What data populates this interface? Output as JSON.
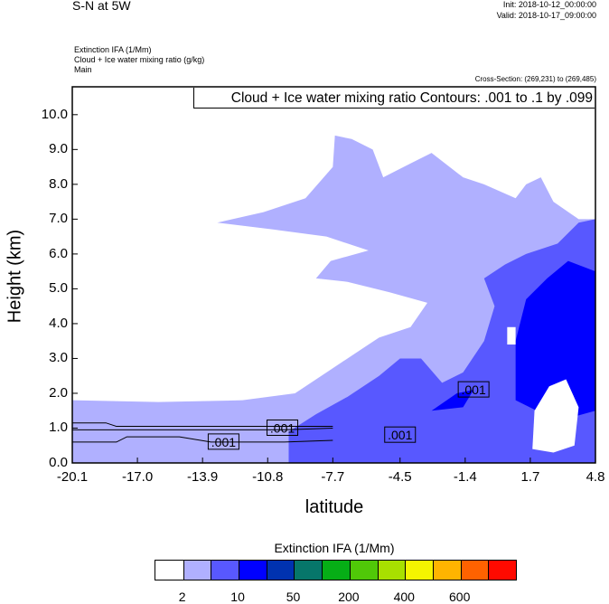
{
  "header": {
    "title": "S-N at 5W",
    "init": "Init: 2018-10-12_00:00:00",
    "valid": "Valid: 2018-10-17_09:00:00",
    "fields": [
      "Extinction IFA   (1/Mm)",
      "Cloud + Ice water mixing ratio   (g/kg)",
      "Main"
    ],
    "cross_section": "Cross-Section: (269,231) to (269,485)"
  },
  "chart_data": {
    "type": "contour-filled cross-section",
    "title": "Cloud + Ice water mixing ratio Contours: .001 to .1 by .099",
    "xlabel": "latitude",
    "ylabel": "Height (km)",
    "xlim": [
      -20.1,
      4.8
    ],
    "ylim": [
      0,
      10.8
    ],
    "xticks": [
      "-20.1",
      "-17.0",
      "-13.9",
      "-10.8",
      "-7.7",
      "-4.5",
      "-1.4",
      "1.7",
      "4.8"
    ],
    "yticks": [
      "0.0",
      "1.0",
      "2.0",
      "3.0",
      "4.0",
      "5.0",
      "6.0",
      "7.0",
      "8.0",
      "9.0",
      "10.0"
    ],
    "fill_regions": [
      {
        "level": "2-10",
        "color": "#b0b0ff",
        "points": [
          [
            -20.1,
            0
          ],
          [
            -20.1,
            1.8
          ],
          [
            -16,
            1.75
          ],
          [
            -12,
            1.8
          ],
          [
            -9.5,
            2.0
          ],
          [
            -8,
            2.6
          ],
          [
            -6.5,
            3.2
          ],
          [
            -5.5,
            3.6
          ],
          [
            -4,
            3.9
          ],
          [
            -3.2,
            4.6
          ],
          [
            -5,
            4.9
          ],
          [
            -7,
            5.2
          ],
          [
            -8.5,
            5.3
          ],
          [
            -7.8,
            5.8
          ],
          [
            -6,
            6.1
          ],
          [
            -8,
            6.5
          ],
          [
            -10.5,
            6.7
          ],
          [
            -13.2,
            6.9
          ],
          [
            -11,
            7.2
          ],
          [
            -9,
            7.6
          ],
          [
            -7.7,
            8.5
          ],
          [
            -7.6,
            9.4
          ],
          [
            -6.8,
            9.3
          ],
          [
            -5.8,
            9.0
          ],
          [
            -5.3,
            8.2
          ],
          [
            -4,
            8.6
          ],
          [
            -3,
            8.9
          ],
          [
            -1.5,
            8.2
          ],
          [
            -0.5,
            8.0
          ],
          [
            1,
            7.6
          ],
          [
            1.5,
            8.0
          ],
          [
            2.2,
            8.2
          ],
          [
            2.8,
            7.5
          ],
          [
            4,
            7.0
          ],
          [
            4.8,
            7.0
          ],
          [
            4.8,
            0
          ]
        ]
      },
      {
        "level": "10-50",
        "color": "#5858ff",
        "points": [
          [
            -9.8,
            0
          ],
          [
            -9.8,
            0.9
          ],
          [
            -8.5,
            1.4
          ],
          [
            -7,
            1.9
          ],
          [
            -5.5,
            2.5
          ],
          [
            -4.5,
            3.0
          ],
          [
            -3.5,
            3.0
          ],
          [
            -2.5,
            2.3
          ],
          [
            -1.5,
            2.6
          ],
          [
            -0.5,
            3.5
          ],
          [
            0,
            4.5
          ],
          [
            -0.5,
            5.3
          ],
          [
            0.5,
            5.7
          ],
          [
            1.5,
            6.0
          ],
          [
            3,
            6.3
          ],
          [
            4,
            6.9
          ],
          [
            4.8,
            7.0
          ],
          [
            4.8,
            0
          ]
        ]
      },
      {
        "level": "50-200",
        "color": "#0000ff",
        "points": [
          [
            1.0,
            1.8
          ],
          [
            1.0,
            3.5
          ],
          [
            1.5,
            4.7
          ],
          [
            2.5,
            5.3
          ],
          [
            3.5,
            5.8
          ],
          [
            4.8,
            5.5
          ],
          [
            4.8,
            1.5
          ],
          [
            3,
            1.2
          ]
        ]
      },
      {
        "level": "50-200",
        "color": "#0000ff",
        "points": [
          [
            -3,
            1.5
          ],
          [
            -1.8,
            2.0
          ],
          [
            -1,
            2.1
          ],
          [
            -1.5,
            1.6
          ]
        ]
      },
      {
        "level": "<2",
        "color": "#ffffff",
        "points": [
          [
            1.8,
            0.4
          ],
          [
            1.9,
            1.5
          ],
          [
            2.6,
            2.2
          ],
          [
            3.4,
            2.4
          ],
          [
            4.0,
            1.6
          ],
          [
            3.8,
            0.5
          ],
          [
            2.8,
            0.3
          ]
        ]
      },
      {
        "level": "<2",
        "color": "#ffffff",
        "points": [
          [
            0.6,
            3.4
          ],
          [
            0.6,
            3.9
          ],
          [
            1.0,
            3.9
          ],
          [
            1.0,
            3.4
          ]
        ]
      }
    ],
    "contour_lines": [
      [
        [
          -20.1,
          0.6
        ],
        [
          -18,
          0.6
        ],
        [
          -17.5,
          0.75
        ],
        [
          -15,
          0.75
        ],
        [
          -13.5,
          0.6
        ],
        [
          -10,
          0.6
        ],
        [
          -7.7,
          0.65
        ]
      ],
      [
        [
          -20.1,
          0.95
        ],
        [
          -15,
          0.95
        ],
        [
          -10,
          0.95
        ],
        [
          -7.7,
          1.0
        ]
      ],
      [
        [
          -20.1,
          1.15
        ],
        [
          -18.5,
          1.15
        ],
        [
          -18,
          1.05
        ],
        [
          -12,
          1.05
        ],
        [
          -7.7,
          1.05
        ]
      ]
    ],
    "contour_labels": [
      {
        "text": ".001",
        "x": -12.9,
        "y": 0.6
      },
      {
        "text": ".001",
        "x": -10.1,
        "y": 1.0
      },
      {
        "text": ".001",
        "x": -4.5,
        "y": 0.8
      },
      {
        "text": ".001",
        "x": -1.0,
        "y": 2.1
      }
    ],
    "colorbar": {
      "title": "Extinction IFA  (1/Mm)",
      "colors": [
        "#ffffff",
        "#b0b0ff",
        "#5858ff",
        "#0000ff",
        "#0032b0",
        "#06766a",
        "#06ae16",
        "#50c808",
        "#a8e000",
        "#f5f500",
        "#ffb400",
        "#ff6200",
        "#ff0a00"
      ],
      "labels": [
        "2",
        "10",
        "50",
        "200",
        "400",
        "600"
      ]
    }
  }
}
